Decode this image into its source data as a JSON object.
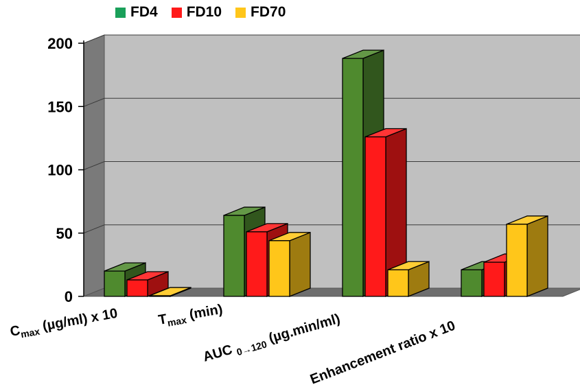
{
  "chart_data": {
    "type": "bar",
    "categories": [
      {
        "base": "C",
        "sub": "max",
        "rest": " (µg/ml) x 10"
      },
      {
        "base": "T",
        "sub": "max",
        "rest": " (min)"
      },
      {
        "base": "AUC ",
        "sub": "0→120",
        "rest": " (µg.min/ml)"
      },
      {
        "base": "Enhancement ratio x 10",
        "sub": "",
        "rest": ""
      }
    ],
    "series": [
      {
        "name": "FD4",
        "values": [
          20,
          64,
          188,
          21
        ],
        "color": "#4f8a2e",
        "legend_color": "#1aa05a"
      },
      {
        "name": "FD10",
        "values": [
          13,
          51,
          126,
          27
        ],
        "color": "#ff1a1a",
        "legend_color": "#ff1a1a"
      },
      {
        "name": "FD70",
        "values": [
          0.5,
          44,
          21,
          57
        ],
        "color": "#ffc61a",
        "legend_color": "#ffc61a"
      }
    ],
    "yticks": [
      "0",
      "50",
      "100",
      "150",
      "200"
    ],
    "ylim": [
      0,
      200
    ],
    "grid": true,
    "legend_position": "top"
  }
}
